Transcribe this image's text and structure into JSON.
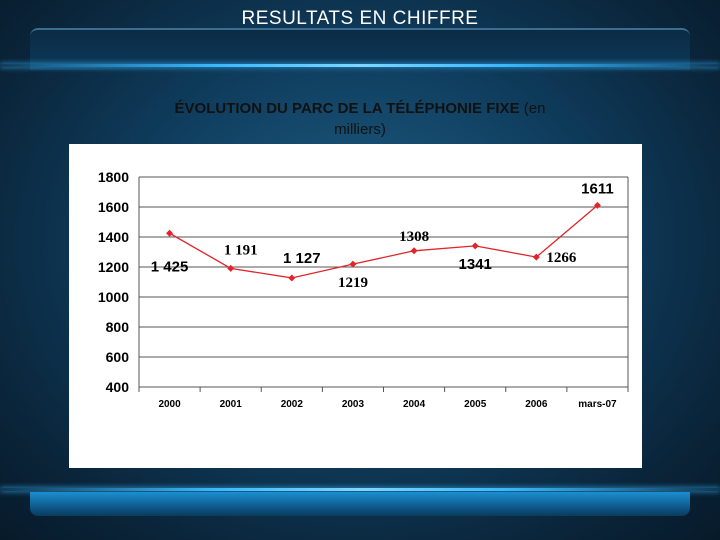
{
  "slide": {
    "title": "RESULTATS EN CHIFFRE",
    "subtitle_main": "ÉVOLUTION DU PARC DE LA TÉLÉPHONIE FIXE",
    "subtitle_rest": " (en",
    "subtitle_line2": "milliers)"
  },
  "chart_data": {
    "type": "line",
    "categories": [
      "2000",
      "2001",
      "2002",
      "2003",
      "2004",
      "2005",
      "2006",
      "mars-07"
    ],
    "values": [
      1425,
      1191,
      1127,
      1219,
      1308,
      1341,
      1266,
      1611
    ],
    "data_labels": [
      "1 425",
      "1 191",
      "1 127",
      "1219",
      "1308",
      "1341",
      "1266",
      "1611"
    ],
    "label_styles": [
      "sans",
      "serif",
      "sans",
      "serif",
      "serif",
      "sans",
      "serif",
      "sans"
    ],
    "label_positions": [
      "below",
      "above",
      "above",
      "below",
      "above",
      "below",
      "right",
      "above"
    ],
    "yticks": [
      400,
      600,
      800,
      1000,
      1200,
      1400,
      1600,
      1800
    ],
    "ylim": [
      400,
      1800
    ],
    "grid": true,
    "line_color": "#e0252b",
    "marker_color": "#e0252b",
    "title": "",
    "xlabel": "",
    "ylabel": ""
  }
}
